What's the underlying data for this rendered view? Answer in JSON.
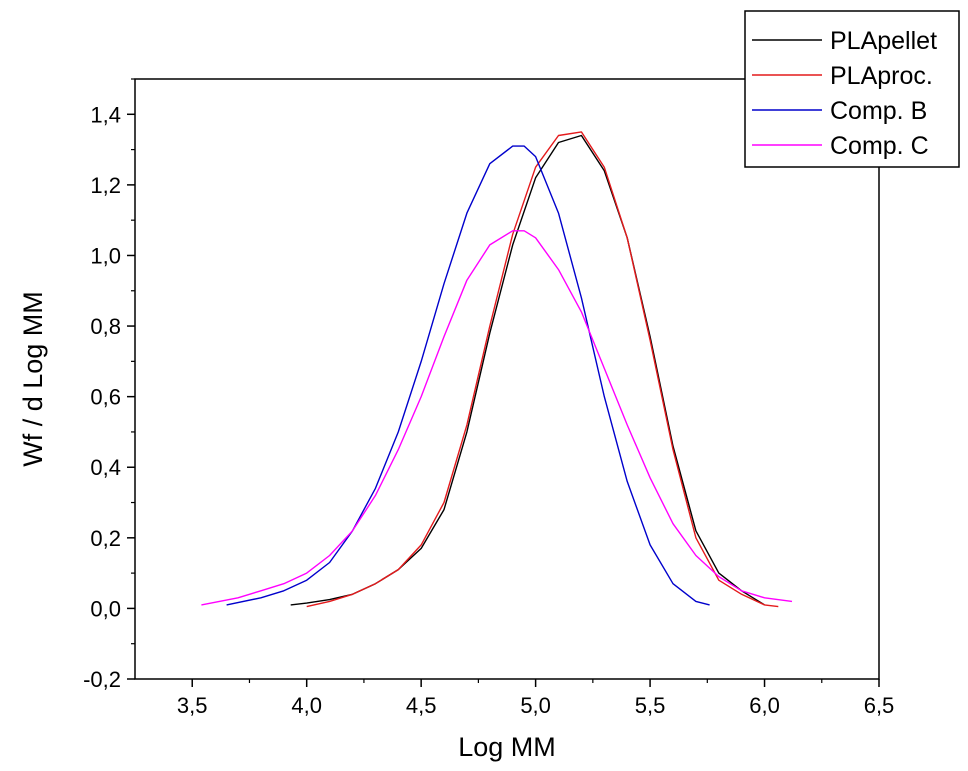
{
  "chart_data": {
    "type": "line",
    "xlabel": "Log MM",
    "ylabel": "Wf / d Log MM",
    "xlim": [
      3.25,
      6.5
    ],
    "ylim": [
      -0.2,
      1.5
    ],
    "x_ticks": [
      3.5,
      4.0,
      4.5,
      5.0,
      5.5,
      6.0,
      6.5
    ],
    "x_tick_labels": [
      "3,5",
      "4,0",
      "4,5",
      "5,0",
      "5,5",
      "6,0",
      "6,5"
    ],
    "y_ticks": [
      -0.2,
      0.0,
      0.2,
      0.4,
      0.6,
      0.8,
      1.0,
      1.2,
      1.4
    ],
    "y_tick_labels": [
      "-0,2",
      "0,0",
      "0,2",
      "0,4",
      "0,6",
      "0,8",
      "1,0",
      "1,2",
      "1,4"
    ],
    "grid": false,
    "legend_position": "top-right",
    "series": [
      {
        "name": "PLApellet",
        "color": "#000000",
        "x": [
          3.93,
          4.0,
          4.1,
          4.2,
          4.3,
          4.4,
          4.5,
          4.6,
          4.7,
          4.8,
          4.9,
          5.0,
          5.1,
          5.2,
          5.3,
          5.4,
          5.5,
          5.6,
          5.7,
          5.8,
          5.9,
          6.0
        ],
        "y": [
          0.01,
          0.015,
          0.025,
          0.04,
          0.07,
          0.11,
          0.17,
          0.28,
          0.5,
          0.78,
          1.03,
          1.22,
          1.32,
          1.34,
          1.24,
          1.05,
          0.77,
          0.46,
          0.22,
          0.1,
          0.05,
          0.01
        ]
      },
      {
        "name": "PLAproc.",
        "color": "#e41a1c",
        "x": [
          4.0,
          4.1,
          4.2,
          4.3,
          4.4,
          4.5,
          4.6,
          4.7,
          4.8,
          4.9,
          5.0,
          5.1,
          5.2,
          5.3,
          5.4,
          5.5,
          5.6,
          5.7,
          5.8,
          5.9,
          6.0,
          6.06
        ],
        "y": [
          0.005,
          0.02,
          0.04,
          0.07,
          0.11,
          0.18,
          0.3,
          0.52,
          0.8,
          1.06,
          1.25,
          1.34,
          1.35,
          1.25,
          1.05,
          0.76,
          0.45,
          0.2,
          0.08,
          0.04,
          0.01,
          0.005
        ]
      },
      {
        "name": "Comp. B",
        "color": "#0000cc",
        "x": [
          3.65,
          3.8,
          3.9,
          4.0,
          4.1,
          4.2,
          4.3,
          4.4,
          4.5,
          4.6,
          4.7,
          4.8,
          4.9,
          4.95,
          5.0,
          5.1,
          5.2,
          5.3,
          5.4,
          5.5,
          5.6,
          5.7,
          5.76
        ],
        "y": [
          0.01,
          0.03,
          0.05,
          0.08,
          0.13,
          0.22,
          0.34,
          0.5,
          0.7,
          0.92,
          1.12,
          1.26,
          1.31,
          1.31,
          1.28,
          1.12,
          0.88,
          0.6,
          0.36,
          0.18,
          0.07,
          0.02,
          0.01
        ]
      },
      {
        "name": "Comp. C",
        "color": "#ff00ff",
        "x": [
          3.54,
          3.7,
          3.8,
          3.9,
          4.0,
          4.1,
          4.2,
          4.3,
          4.4,
          4.5,
          4.6,
          4.7,
          4.8,
          4.9,
          4.95,
          5.0,
          5.1,
          5.2,
          5.3,
          5.4,
          5.5,
          5.6,
          5.7,
          5.8,
          5.9,
          6.0,
          6.12
        ],
        "y": [
          0.01,
          0.03,
          0.05,
          0.07,
          0.1,
          0.15,
          0.22,
          0.32,
          0.45,
          0.6,
          0.77,
          0.93,
          1.03,
          1.07,
          1.07,
          1.05,
          0.96,
          0.84,
          0.68,
          0.52,
          0.37,
          0.24,
          0.15,
          0.09,
          0.05,
          0.03,
          0.02
        ]
      }
    ]
  }
}
